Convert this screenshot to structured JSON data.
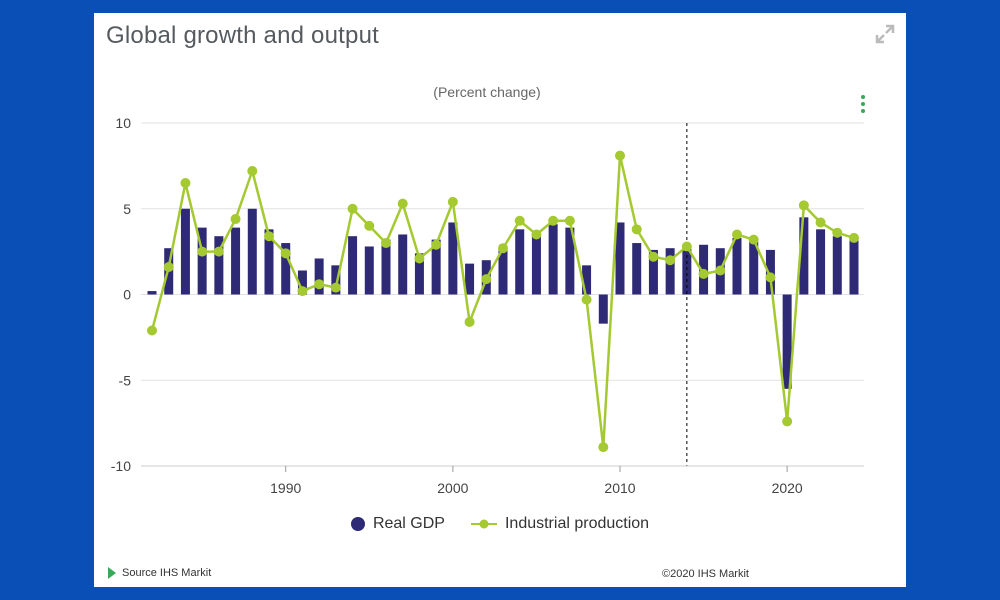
{
  "card": {
    "title": "Global growth and output",
    "source_text": "Source IHS Markit",
    "copyright": "©2020 IHS Markit"
  },
  "colors": {
    "background": "#0a4fb5",
    "bar": "#2e2a75",
    "line": "#a4c931",
    "grid": "#e2e2e2",
    "source_arrow": "#3aa85a"
  },
  "chart_data": {
    "type": "bar+line",
    "subtitle": "(Percent change)",
    "xlabel": "",
    "ylabel": "",
    "x_ticks": [
      "1990",
      "2000",
      "2010",
      "2020"
    ],
    "y_ticks": [
      "10",
      "5",
      "0",
      "-5",
      "-10"
    ],
    "ylim": [
      -10,
      10
    ],
    "forecast_divider_year": 2014,
    "years": [
      1982,
      1983,
      1984,
      1985,
      1986,
      1987,
      1988,
      1989,
      1990,
      1991,
      1992,
      1993,
      1994,
      1995,
      1996,
      1997,
      1998,
      1999,
      2000,
      2001,
      2002,
      2003,
      2004,
      2005,
      2006,
      2007,
      2008,
      2009,
      2010,
      2011,
      2012,
      2013,
      2014,
      2015,
      2016,
      2017,
      2018,
      2019,
      2020,
      2021,
      2022,
      2023,
      2024
    ],
    "series": [
      {
        "name": "Real GDP",
        "kind": "bar",
        "values": [
          0.2,
          2.7,
          5.0,
          3.9,
          3.4,
          3.9,
          5.0,
          3.8,
          3.0,
          1.4,
          2.1,
          1.7,
          3.4,
          2.8,
          3.2,
          3.5,
          2.4,
          3.2,
          4.2,
          1.8,
          2.0,
          2.7,
          3.8,
          3.5,
          4.1,
          3.9,
          1.7,
          -1.7,
          4.2,
          3.0,
          2.6,
          2.7,
          2.8,
          2.9,
          2.7,
          3.3,
          3.1,
          2.6,
          -5.5,
          4.5,
          3.8,
          3.4,
          3.3
        ]
      },
      {
        "name": "Industrial production",
        "kind": "line",
        "values": [
          -2.1,
          1.6,
          6.5,
          2.5,
          2.5,
          4.4,
          7.2,
          3.4,
          2.4,
          0.2,
          0.6,
          0.4,
          5.0,
          4.0,
          3.0,
          5.3,
          2.1,
          2.9,
          5.4,
          -1.6,
          0.9,
          2.7,
          4.3,
          3.5,
          4.3,
          4.3,
          -0.3,
          -8.9,
          8.1,
          3.8,
          2.2,
          2.0,
          2.8,
          1.2,
          1.4,
          3.5,
          3.2,
          1.0,
          -7.4,
          5.2,
          4.2,
          3.6,
          3.3
        ]
      }
    ]
  }
}
